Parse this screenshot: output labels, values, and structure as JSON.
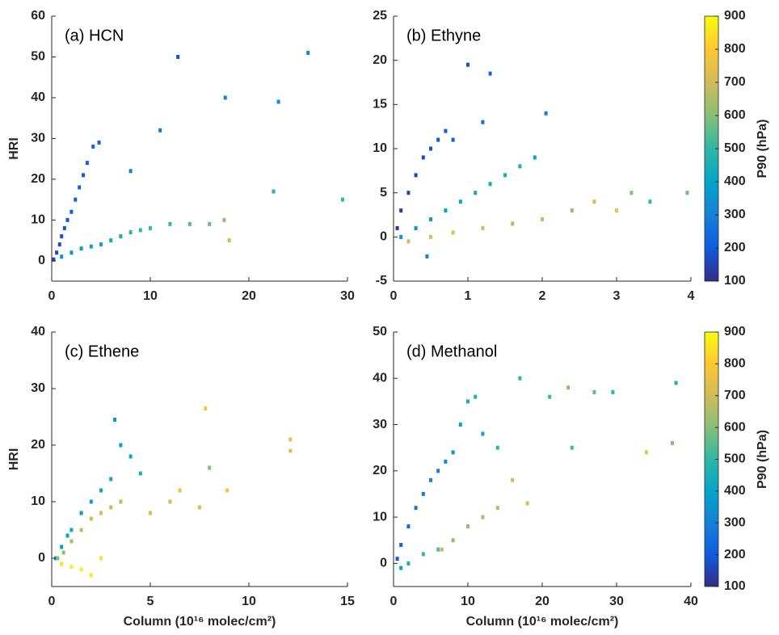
{
  "chart_data": [
    {
      "type": "scatter",
      "title": "(a) HCN",
      "ylabel": "HRI",
      "xlim": [
        0,
        30
      ],
      "ylim": [
        -5,
        60
      ],
      "xticks": [
        0,
        10,
        20,
        30
      ],
      "yticks": [
        0,
        10,
        20,
        30,
        40,
        50,
        60
      ],
      "clim": [
        100,
        900
      ],
      "colormap": [
        "#352a87",
        "#0f5cdd",
        "#1481d6",
        "#06a4ca",
        "#2eb7a4",
        "#87bf77",
        "#d1bb59",
        "#fec832",
        "#f9fb0e"
      ],
      "x": [
        0.2,
        0.5,
        0.8,
        1.0,
        1.3,
        1.6,
        2.0,
        2.4,
        2.8,
        3.2,
        3.6,
        4.2,
        4.8,
        1,
        2,
        3,
        4,
        5,
        6,
        7,
        8,
        9,
        10,
        12,
        14,
        16,
        17.5,
        18,
        8,
        11,
        12.8,
        17.6,
        23,
        26,
        22.5,
        29.5
      ],
      "y": [
        0.3,
        2,
        4,
        6,
        8,
        10,
        12,
        15,
        18,
        21,
        24,
        28,
        29,
        1,
        2,
        3,
        3.5,
        4,
        5,
        6,
        7,
        7.5,
        8,
        9,
        9,
        9,
        10,
        5,
        22,
        32,
        50,
        40,
        39,
        51,
        17,
        15
      ],
      "c": [
        150,
        160,
        170,
        180,
        190,
        180,
        200,
        210,
        220,
        200,
        210,
        230,
        220,
        350,
        360,
        380,
        400,
        420,
        430,
        450,
        480,
        500,
        520,
        500,
        540,
        560,
        600,
        700,
        300,
        280,
        180,
        300,
        330,
        300,
        480,
        500
      ]
    },
    {
      "type": "scatter",
      "title": "(b) Ethyne",
      "xlim": [
        0,
        4
      ],
      "ylim": [
        -5,
        25
      ],
      "xticks": [
        0,
        1,
        2,
        3,
        4
      ],
      "yticks": [
        -5,
        0,
        5,
        10,
        15,
        20,
        25
      ],
      "clim": [
        100,
        900
      ],
      "colormap": [
        "#352a87",
        "#0f5cdd",
        "#1481d6",
        "#06a4ca",
        "#2eb7a4",
        "#87bf77",
        "#d1bb59",
        "#fec832",
        "#f9fb0e"
      ],
      "colorbar_label": "P90 (hPa)",
      "cticks": [
        100,
        200,
        300,
        400,
        500,
        600,
        700,
        800,
        900
      ],
      "x": [
        0.05,
        0.1,
        0.2,
        0.3,
        0.4,
        0.5,
        0.6,
        0.7,
        0.8,
        1.0,
        1.2,
        1.3,
        0.1,
        0.3,
        0.5,
        0.7,
        0.9,
        1.1,
        1.3,
        1.5,
        1.7,
        1.9,
        0.2,
        0.5,
        0.8,
        1.2,
        1.6,
        2.0,
        2.4,
        2.7,
        3.0,
        3.2,
        3.45,
        3.95,
        2.05,
        0.45
      ],
      "y": [
        1,
        3,
        5,
        7,
        9,
        10,
        11,
        12,
        11,
        19.5,
        13,
        18.5,
        0,
        1,
        2,
        3,
        4,
        5,
        6,
        7,
        8,
        9,
        -0.5,
        0,
        0.5,
        1,
        1.5,
        2,
        3,
        4,
        3,
        5,
        4,
        5,
        14,
        -2.2
      ],
      "c": [
        130,
        140,
        150,
        160,
        170,
        180,
        190,
        200,
        210,
        180,
        250,
        220,
        350,
        360,
        380,
        400,
        420,
        430,
        440,
        450,
        460,
        380,
        700,
        720,
        720,
        700,
        650,
        680,
        620,
        700,
        750,
        600,
        520,
        580,
        300,
        300
      ]
    },
    {
      "type": "scatter",
      "title": "(c) Ethene",
      "ylabel": "HRI",
      "xlabel": "Column (10¹⁶ molec/cm²)",
      "xlim": [
        0,
        15
      ],
      "ylim": [
        -5,
        40
      ],
      "xticks": [
        0,
        5,
        10,
        15
      ],
      "yticks": [
        0,
        10,
        20,
        30,
        40
      ],
      "clim": [
        100,
        900
      ],
      "colormap": [
        "#352a87",
        "#0f5cdd",
        "#1481d6",
        "#06a4ca",
        "#2eb7a4",
        "#87bf77",
        "#d1bb59",
        "#fec832",
        "#f9fb0e"
      ],
      "x": [
        0.2,
        0.5,
        0.8,
        1.0,
        1.5,
        2.0,
        2.5,
        3.0,
        3.2,
        3.5,
        4.0,
        4.5,
        0.3,
        0.6,
        1.0,
        1.5,
        2.0,
        2.5,
        3.0,
        3.5,
        0.5,
        1.0,
        1.5,
        2.0,
        2.5,
        5.0,
        6.0,
        6.5,
        7.5,
        7.8,
        8.0,
        8.9,
        12.1,
        12.1
      ],
      "y": [
        0,
        2,
        4,
        5,
        8,
        10,
        12,
        14,
        24.5,
        20,
        18,
        15,
        0,
        1,
        3,
        5,
        7,
        8,
        9,
        10,
        -1,
        -1.5,
        -2,
        -3,
        0,
        8,
        10,
        12,
        9,
        26.5,
        16,
        12,
        21,
        19
      ],
      "c": [
        350,
        380,
        400,
        420,
        380,
        400,
        420,
        430,
        350,
        400,
        420,
        450,
        600,
        620,
        650,
        680,
        700,
        720,
        700,
        680,
        850,
        880,
        880,
        870,
        850,
        720,
        700,
        750,
        720,
        780,
        600,
        780,
        720,
        740
      ]
    },
    {
      "type": "scatter",
      "title": "(d) Methanol",
      "xlabel": "Column (10¹⁶ molec/cm²)",
      "xlim": [
        0,
        40
      ],
      "ylim": [
        -5,
        50
      ],
      "xticks": [
        0,
        10,
        20,
        30,
        40
      ],
      "yticks": [
        0,
        10,
        20,
        30,
        40,
        50
      ],
      "clim": [
        100,
        900
      ],
      "colormap": [
        "#352a87",
        "#0f5cdd",
        "#1481d6",
        "#06a4ca",
        "#2eb7a4",
        "#87bf77",
        "#d1bb59",
        "#fec832",
        "#f9fb0e"
      ],
      "colorbar_label": "P90 (hPa)",
      "cticks": [
        100,
        200,
        300,
        400,
        500,
        600,
        700,
        800,
        900
      ],
      "x": [
        0.5,
        1,
        2,
        3,
        4,
        5,
        6,
        7,
        8,
        9,
        10,
        11,
        12,
        14,
        1,
        2,
        4,
        6,
        8,
        10,
        12,
        14,
        16,
        18,
        17,
        21,
        23.5,
        24,
        27,
        29.5,
        34,
        38,
        37.5,
        6.5
      ],
      "y": [
        1,
        4,
        8,
        12,
        15,
        18,
        20,
        22,
        24,
        30,
        35,
        36,
        28,
        25,
        -1,
        0,
        2,
        3,
        5,
        8,
        10,
        12,
        18,
        13,
        40,
        36,
        38,
        25,
        37,
        37,
        24,
        39,
        26,
        3
      ],
      "c": [
        200,
        220,
        250,
        280,
        300,
        320,
        300,
        330,
        350,
        400,
        450,
        480,
        420,
        500,
        400,
        450,
        500,
        550,
        600,
        620,
        650,
        680,
        700,
        720,
        500,
        520,
        600,
        520,
        550,
        500,
        750,
        480,
        600,
        700
      ]
    }
  ]
}
